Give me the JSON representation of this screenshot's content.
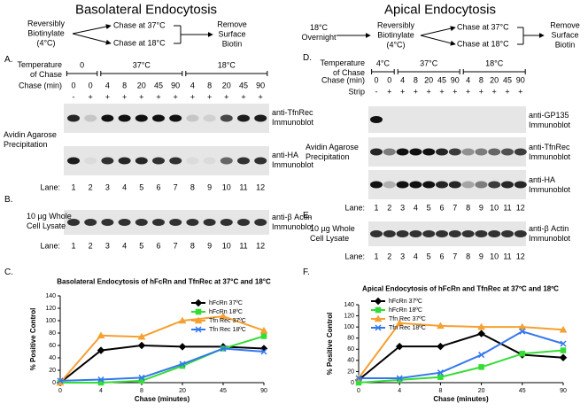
{
  "basolateral": {
    "title": "Basolateral Endocytosis",
    "protocol": {
      "start": "Reversibly\nBiotinylate\n(4°C)",
      "chase_37": "Chase at 37°C",
      "chase_18": "Chase at 18°C",
      "end": "Remove\nSurface\nBiotin"
    },
    "panel_a": {
      "label": "A.",
      "temperature_label": "Temperature\nof Chase",
      "temperatures": [
        "0",
        "37°C",
        "18°C"
      ],
      "chase_label": "Chase (min)",
      "chase": [
        0,
        0,
        4,
        8,
        20,
        45,
        90,
        4,
        8,
        20,
        45,
        90
      ],
      "strip": [
        "-",
        "+",
        "+",
        "+",
        "+",
        "+",
        "+",
        "+",
        "+",
        "+",
        "+",
        "+"
      ],
      "precipitation_label": "Avidin Agarose\nPrecipitation",
      "blots": [
        "anti-TfnRec\nImmunoblot",
        "anti-HA\nImmunoblot"
      ],
      "lane_label": "Lane:",
      "lanes": [
        1,
        2,
        3,
        4,
        5,
        6,
        7,
        8,
        9,
        10,
        11,
        12
      ]
    },
    "panel_b": {
      "label": "B.",
      "sample_label": "10 µg Whole\nCell Lysate",
      "blot": "anti-β Actin\nImmunoblot",
      "lane_label": "Lane:",
      "lanes": [
        1,
        2,
        3,
        4,
        5,
        6,
        7,
        8,
        9,
        10,
        11,
        12
      ]
    },
    "panel_c_label": "C."
  },
  "apical": {
    "title": "Apical Endocytosis",
    "protocol": {
      "pre": "18°C\nOvernight",
      "start": "Reversibly\nBiotinylate\n(4°C)",
      "chase_37": "Chase at 37°C",
      "chase_18": "Chase at 18°C",
      "end": "Remove\nSurface\nBiotin"
    },
    "panel_d": {
      "label": "D.",
      "temperature_label": "Temperature\nof Chase",
      "temperatures": [
        "4°C",
        "37°C",
        "18°C"
      ],
      "chase_label": "Chase (min)",
      "chase": [
        0,
        0,
        4,
        8,
        20,
        45,
        90,
        4,
        8,
        20,
        45,
        90
      ],
      "strip_label": "Strip",
      "strip": [
        "-",
        "+",
        "+",
        "+",
        "+",
        "+",
        "+",
        "+",
        "+",
        "+",
        "+",
        "+"
      ],
      "precipitation_label": "Avidin Agarose\nPrecipitation",
      "blots": [
        "anti-GP135\nImmunoblot",
        "anti-TfnRec\nImmunoblot",
        "anti-HA\nImmunoblot"
      ],
      "lane_label": "Lane:",
      "lanes": [
        1,
        2,
        3,
        4,
        5,
        6,
        7,
        8,
        9,
        10,
        11,
        12
      ]
    },
    "panel_e": {
      "label": "E.",
      "sample_label": "10 µg Whole\nCell Lysate",
      "blot": "anti-β Actin\nImmunoblot",
      "lane_label": "Lane:",
      "lanes": [
        1,
        2,
        3,
        4,
        5,
        6,
        7,
        8,
        9,
        10,
        11,
        12
      ]
    },
    "panel_f_label": "F."
  },
  "chart_data": [
    {
      "type": "line",
      "title": "Basolateral Endocytosis of hFcRn and TfnRec at 37°C and 18°C",
      "x_label": "Chase (minutes)",
      "y_label": "% Positive Control",
      "categories": [
        "0",
        "4",
        "8",
        "20",
        "45",
        "90"
      ],
      "ylim": [
        0,
        140
      ],
      "yticks": [
        0,
        20,
        40,
        60,
        80,
        100,
        120,
        140
      ],
      "legend": "upper right",
      "series": [
        {
          "name": "hFcRn 37ºC",
          "color": "#000000",
          "marker": "diamond",
          "values": [
            0,
            52,
            60,
            58,
            58,
            55
          ]
        },
        {
          "name": "hFcRn 18ºC",
          "color": "#33dd33",
          "marker": "square",
          "values": [
            0,
            0,
            3,
            27,
            55,
            75
          ]
        },
        {
          "name": "Tfn Rec 37ºC",
          "color": "#f5a030",
          "marker": "triangle",
          "values": [
            0,
            76,
            74,
            100,
            107,
            84
          ]
        },
        {
          "name": "Tfn Rec 18ºC",
          "color": "#3377ee",
          "marker": "x",
          "values": [
            3,
            5,
            8,
            30,
            55,
            50
          ]
        }
      ]
    },
    {
      "type": "line",
      "title": "Apical Endocytosis of hFcRn and TfnRec at 37ºC and 18ºC",
      "x_label": "Chase (minutes)",
      "y_label": "% Positive Control",
      "categories": [
        "0",
        "4",
        "8",
        "20",
        "45",
        "90"
      ],
      "ylim": [
        0,
        140
      ],
      "yticks": [
        0,
        20,
        40,
        60,
        80,
        100,
        120,
        140
      ],
      "legend": "upper left",
      "series": [
        {
          "name": "hFcRn 37ºC",
          "color": "#000000",
          "marker": "diamond",
          "values": [
            5,
            65,
            65,
            88,
            50,
            45
          ]
        },
        {
          "name": "hFcRn 18ºC",
          "color": "#33dd33",
          "marker": "square",
          "values": [
            0,
            5,
            10,
            28,
            52,
            58
          ]
        },
        {
          "name": "Tfn Rec 37ºC",
          "color": "#f5a030",
          "marker": "triangle",
          "values": [
            8,
            107,
            102,
            100,
            100,
            95
          ]
        },
        {
          "name": "Tfn Rec 18ºC",
          "color": "#3377ee",
          "marker": "x",
          "values": [
            8,
            8,
            18,
            50,
            92,
            70
          ]
        }
      ]
    }
  ]
}
